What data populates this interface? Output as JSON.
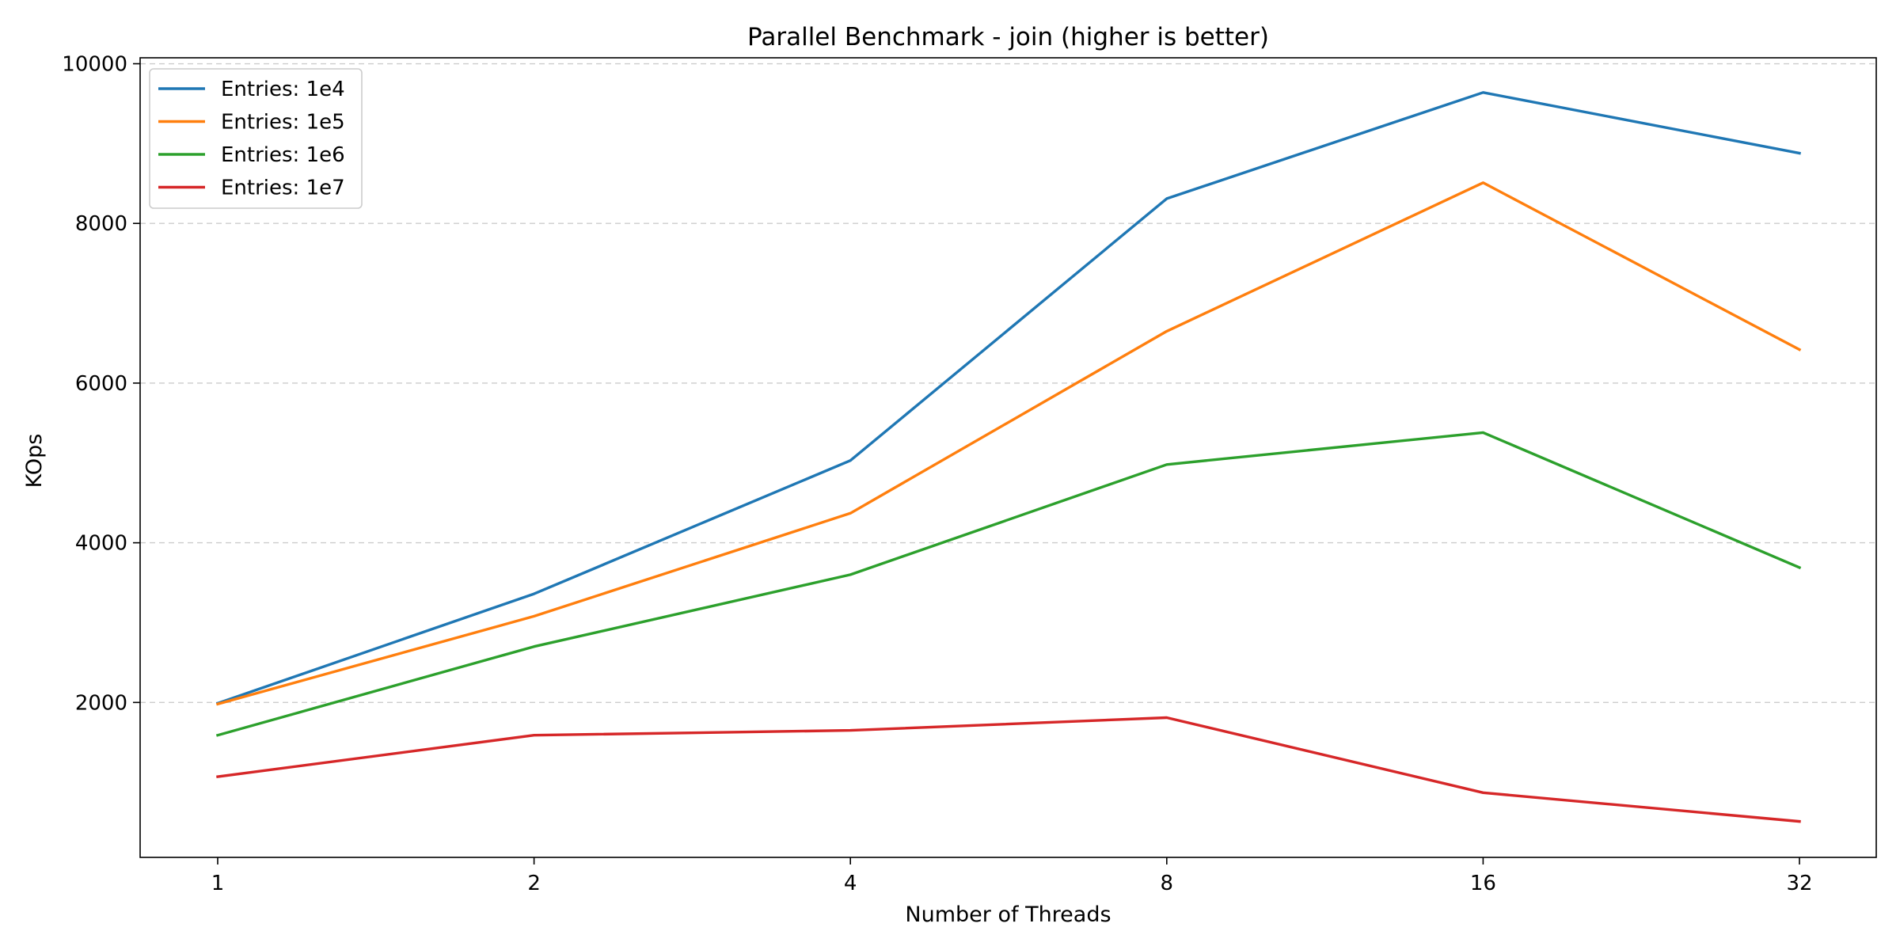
{
  "chart_data": {
    "type": "line",
    "title": "Parallel Benchmark - join (higher is better)",
    "xlabel": "Number of Threads",
    "ylabel": "KOps",
    "x": [
      "1",
      "2",
      "4",
      "8",
      "16",
      "32"
    ],
    "x_scale": "log2",
    "ylim": [
      0,
      10000
    ],
    "yticks": [
      2000,
      4000,
      6000,
      8000,
      10000
    ],
    "grid": "y-dashed",
    "legend_position": "top-left",
    "series": [
      {
        "name": "Entries: 1e4",
        "color": "#1f77b4",
        "values": [
          1990,
          3360,
          5030,
          8310,
          9640,
          8880
        ]
      },
      {
        "name": "Entries: 1e5",
        "color": "#ff7f0e",
        "values": [
          1980,
          3080,
          4370,
          6650,
          8510,
          6420
        ]
      },
      {
        "name": "Entries: 1e6",
        "color": "#2ca02c",
        "values": [
          1590,
          2700,
          3600,
          4980,
          5380,
          3690
        ]
      },
      {
        "name": "Entries: 1e7",
        "color": "#d62728",
        "values": [
          1070,
          1590,
          1650,
          1810,
          870,
          510
        ]
      }
    ]
  }
}
